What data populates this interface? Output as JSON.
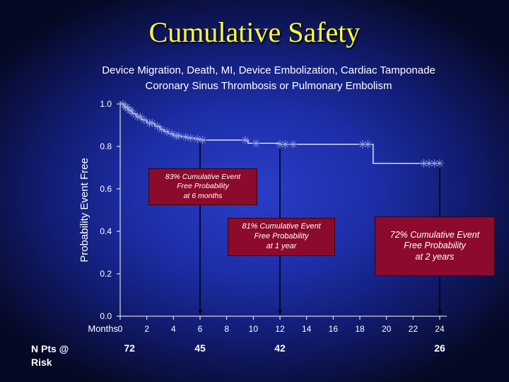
{
  "slide_title": "Cumulative Safety",
  "chart_data": {
    "type": "line",
    "title_line1": "Device Migration, Death, MI, Device Embolization, Cardiac Tamponade",
    "title_line2": "Coronary Sinus Thrombosis or Pulmonary Embolism",
    "ylabel": "Probability  Event  Free",
    "xlabel": "Months",
    "xlim": [
      0,
      24
    ],
    "ylim": [
      0.0,
      1.0
    ],
    "x_ticks": [
      0,
      2,
      4,
      6,
      8,
      10,
      12,
      14,
      16,
      18,
      20,
      22,
      24
    ],
    "y_ticks": [
      "0.0",
      "0.2",
      "0.4",
      "0.6",
      "0.8",
      "1.0"
    ],
    "grid": false,
    "series": [
      {
        "style": "kaplan-meier step with censor marks",
        "x": [
          0,
          0.3,
          0.6,
          0.9,
          1.2,
          1.6,
          2.0,
          2.6,
          3.0,
          3.3,
          3.6,
          4.0,
          4.6,
          5.0,
          5.6,
          6.0,
          9.0,
          9.6,
          12.0,
          18.0,
          19.0,
          24.0
        ],
        "y": [
          1.0,
          0.985,
          0.97,
          0.955,
          0.94,
          0.925,
          0.91,
          0.895,
          0.88,
          0.87,
          0.86,
          0.85,
          0.845,
          0.84,
          0.835,
          0.83,
          0.83,
          0.815,
          0.81,
          0.81,
          0.72,
          0.72
        ],
        "censored_x": [
          0.2,
          0.4,
          0.5,
          0.7,
          0.8,
          1.0,
          1.3,
          1.5,
          1.8,
          2.2,
          2.4,
          2.8,
          3.1,
          3.5,
          3.9,
          4.2,
          4.4,
          4.9,
          5.3,
          5.8,
          6.2,
          9.4,
          10.2,
          12.0,
          12.4,
          13.0,
          18.2,
          18.6,
          22.8,
          23.2,
          23.6,
          24.0
        ]
      }
    ],
    "annotations": [
      {
        "x": 6,
        "y": 0.83,
        "text": "83% Cumulative Event\nFree Probability\nat 6 months"
      },
      {
        "x": 12,
        "y": 0.81,
        "text": "81% Cumulative Event\nFree Probability\nat 1 year"
      },
      {
        "x": 24,
        "y": 0.72,
        "text": "72% Cumulative Event\nFree Probability\nat 2 years"
      }
    ]
  },
  "at_risk": {
    "label": "N  Pts @\nRisk",
    "values": [
      {
        "month": 0,
        "n": "72"
      },
      {
        "month": 6,
        "n": "45"
      },
      {
        "month": 12,
        "n": "42"
      },
      {
        "month": 24,
        "n": "26"
      }
    ]
  }
}
